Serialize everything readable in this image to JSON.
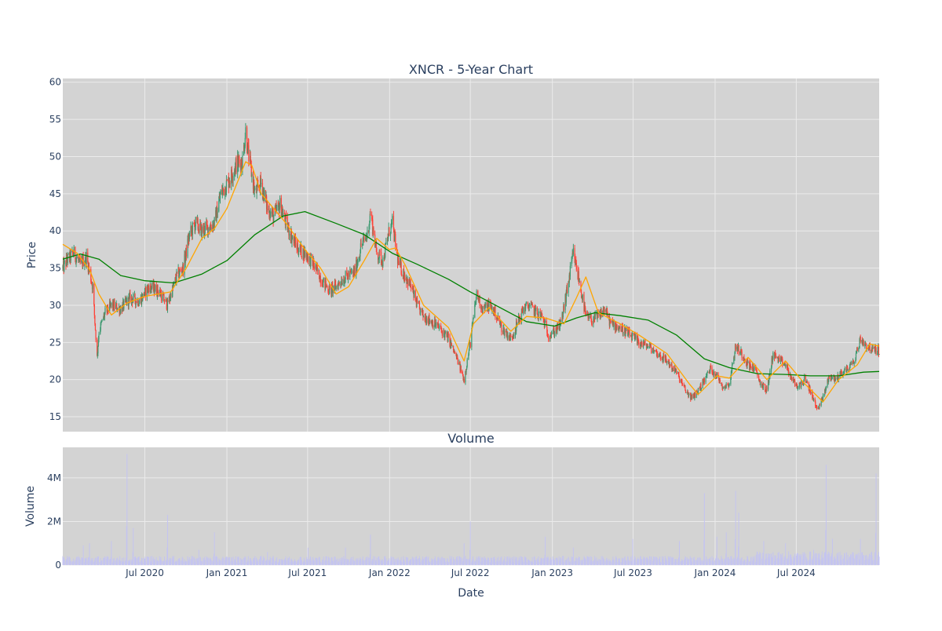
{
  "chart_data": [
    {
      "id": "price",
      "type": "candlestick",
      "title": "XNCR - 5-Year Chart",
      "xlabel": "",
      "ylabel": "Price",
      "x_range": [
        "2019-12-30",
        "2025-01-03"
      ],
      "ylim": [
        13,
        60.5
      ],
      "y_ticks": [
        15,
        20,
        25,
        30,
        35,
        40,
        45,
        50,
        55,
        60
      ],
      "x_ticks": [
        {
          "date": "2020-07-01",
          "label": "Jul 2020"
        },
        {
          "date": "2021-01-01",
          "label": "Jan 2021"
        },
        {
          "date": "2021-07-01",
          "label": "Jul 2021"
        },
        {
          "date": "2022-01-01",
          "label": "Jan 2022"
        },
        {
          "date": "2022-07-01",
          "label": "Jul 2022"
        },
        {
          "date": "2023-01-01",
          "label": "Jan 2023"
        },
        {
          "date": "2023-07-01",
          "label": "Jul 2023"
        },
        {
          "date": "2024-01-01",
          "label": "Jan 2024"
        },
        {
          "date": "2024-07-01",
          "label": "Jul 2024"
        }
      ],
      "grid": true,
      "legend": "none",
      "colors": {
        "background": "#d3d3d3",
        "increasing": "#3d9970",
        "decreasing": "#ff4136",
        "ma_short": "#ffa500",
        "ma_long": "#008000",
        "grid": "#ebebeb"
      },
      "close_path": [
        [
          "2019-12-30",
          35.0
        ],
        [
          "2020-01-10",
          36.2
        ],
        [
          "2020-01-24",
          37.0
        ],
        [
          "2020-02-07",
          35.5
        ],
        [
          "2020-02-21",
          36.5
        ],
        [
          "2020-03-06",
          32.5
        ],
        [
          "2020-03-16",
          23.0
        ],
        [
          "2020-03-20",
          26.5
        ],
        [
          "2020-04-03",
          29.0
        ],
        [
          "2020-04-17",
          30.0
        ],
        [
          "2020-05-08",
          29.5
        ],
        [
          "2020-05-29",
          31.0
        ],
        [
          "2020-06-19",
          30.5
        ],
        [
          "2020-07-10",
          32.5
        ],
        [
          "2020-07-31",
          32.0
        ],
        [
          "2020-08-21",
          30.0
        ],
        [
          "2020-09-11",
          34.0
        ],
        [
          "2020-09-25",
          35.0
        ],
        [
          "2020-10-09",
          39.5
        ],
        [
          "2020-10-23",
          41.0
        ],
        [
          "2020-11-06",
          40.0
        ],
        [
          "2020-11-20",
          40.5
        ],
        [
          "2020-12-04",
          41.0
        ],
        [
          "2020-12-18",
          45.0
        ],
        [
          "2021-01-08",
          47.0
        ],
        [
          "2021-01-22",
          49.0
        ],
        [
          "2021-02-05",
          49.5
        ],
        [
          "2021-02-12",
          53.5
        ],
        [
          "2021-02-19",
          50.0
        ],
        [
          "2021-03-05",
          45.0
        ],
        [
          "2021-03-19",
          46.5
        ],
        [
          "2021-04-02",
          43.0
        ],
        [
          "2021-04-16",
          42.0
        ],
        [
          "2021-04-30",
          43.5
        ],
        [
          "2021-05-14",
          41.0
        ],
        [
          "2021-05-28",
          39.0
        ],
        [
          "2021-06-11",
          37.5
        ],
        [
          "2021-06-25",
          37.0
        ],
        [
          "2021-07-09",
          36.0
        ],
        [
          "2021-07-23",
          34.5
        ],
        [
          "2021-08-06",
          33.0
        ],
        [
          "2021-08-20",
          32.0
        ],
        [
          "2021-09-03",
          32.5
        ],
        [
          "2021-09-17",
          33.5
        ],
        [
          "2021-10-01",
          34.0
        ],
        [
          "2021-10-15",
          34.5
        ],
        [
          "2021-10-29",
          38.0
        ],
        [
          "2021-11-12",
          39.5
        ],
        [
          "2021-11-19",
          42.5
        ],
        [
          "2021-12-03",
          37.0
        ],
        [
          "2021-12-17",
          36.0
        ],
        [
          "2021-12-31",
          40.0
        ],
        [
          "2022-01-07",
          41.0
        ],
        [
          "2022-01-21",
          35.5
        ],
        [
          "2022-02-04",
          34.0
        ],
        [
          "2022-02-18",
          32.5
        ],
        [
          "2022-03-04",
          30.0
        ],
        [
          "2022-03-18",
          28.5
        ],
        [
          "2022-04-01",
          28.0
        ],
        [
          "2022-04-22",
          27.0
        ],
        [
          "2022-05-13",
          25.5
        ],
        [
          "2022-06-03",
          22.5
        ],
        [
          "2022-06-17",
          20.0
        ],
        [
          "2022-07-01",
          25.0
        ],
        [
          "2022-07-15",
          31.5
        ],
        [
          "2022-07-29",
          29.5
        ],
        [
          "2022-08-12",
          30.0
        ],
        [
          "2022-08-26",
          29.0
        ],
        [
          "2022-09-09",
          27.0
        ],
        [
          "2022-09-30",
          25.5
        ],
        [
          "2022-10-14",
          27.5
        ],
        [
          "2022-10-28",
          29.5
        ],
        [
          "2022-11-11",
          30.0
        ],
        [
          "2022-11-25",
          29.0
        ],
        [
          "2022-12-09",
          28.5
        ],
        [
          "2022-12-23",
          26.0
        ],
        [
          "2023-01-06",
          26.5
        ],
        [
          "2023-01-20",
          27.5
        ],
        [
          "2023-02-03",
          32.0
        ],
        [
          "2023-02-17",
          37.0
        ],
        [
          "2023-03-03",
          33.0
        ],
        [
          "2023-03-17",
          28.5
        ],
        [
          "2023-03-31",
          28.0
        ],
        [
          "2023-04-14",
          28.5
        ],
        [
          "2023-04-28",
          29.5
        ],
        [
          "2023-05-12",
          27.5
        ],
        [
          "2023-06-02",
          27.0
        ],
        [
          "2023-06-23",
          26.0
        ],
        [
          "2023-07-14",
          25.0
        ],
        [
          "2023-08-04",
          24.5
        ],
        [
          "2023-08-25",
          23.5
        ],
        [
          "2023-09-15",
          22.5
        ],
        [
          "2023-10-06",
          21.0
        ],
        [
          "2023-10-27",
          18.5
        ],
        [
          "2023-11-10",
          17.5
        ],
        [
          "2023-11-24",
          18.5
        ],
        [
          "2023-12-08",
          20.0
        ],
        [
          "2023-12-22",
          21.5
        ],
        [
          "2024-01-05",
          20.5
        ],
        [
          "2024-01-19",
          19.0
        ],
        [
          "2024-02-02",
          19.5
        ],
        [
          "2024-02-16",
          24.5
        ],
        [
          "2024-03-01",
          23.5
        ],
        [
          "2024-03-15",
          22.0
        ],
        [
          "2024-03-29",
          21.5
        ],
        [
          "2024-04-12",
          19.5
        ],
        [
          "2024-04-26",
          18.5
        ],
        [
          "2024-05-10",
          23.5
        ],
        [
          "2024-05-24",
          22.5
        ],
        [
          "2024-06-07",
          22.0
        ],
        [
          "2024-06-21",
          20.0
        ],
        [
          "2024-07-05",
          19.0
        ],
        [
          "2024-07-19",
          20.0
        ],
        [
          "2024-08-02",
          18.5
        ],
        [
          "2024-08-16",
          16.0
        ],
        [
          "2024-08-30",
          17.5
        ],
        [
          "2024-09-13",
          20.5
        ],
        [
          "2024-09-27",
          20.0
        ],
        [
          "2024-10-11",
          21.0
        ],
        [
          "2024-10-25",
          21.5
        ],
        [
          "2024-11-08",
          22.5
        ],
        [
          "2024-11-22",
          25.5
        ],
        [
          "2024-12-06",
          24.5
        ],
        [
          "2024-12-20",
          24.0
        ],
        [
          "2025-01-03",
          24.0
        ]
      ],
      "ma_short": [
        [
          "2019-12-30",
          38.2
        ],
        [
          "2020-01-31",
          37.0
        ],
        [
          "2020-02-28",
          34.8
        ],
        [
          "2020-03-20",
          31.5
        ],
        [
          "2020-04-17",
          28.7
        ],
        [
          "2020-05-22",
          30.3
        ],
        [
          "2020-07-01",
          31.2
        ],
        [
          "2020-08-28",
          31.8
        ],
        [
          "2020-10-02",
          35.0
        ],
        [
          "2020-11-06",
          39.0
        ],
        [
          "2020-12-04",
          40.3
        ],
        [
          "2021-01-01",
          43.0
        ],
        [
          "2021-02-12",
          49.3
        ],
        [
          "2021-02-26",
          48.8
        ],
        [
          "2021-03-19",
          45.0
        ],
        [
          "2021-05-14",
          41.0
        ],
        [
          "2021-06-25",
          37.5
        ],
        [
          "2021-07-30",
          35.0
        ],
        [
          "2021-09-03",
          31.5
        ],
        [
          "2021-10-01",
          32.5
        ],
        [
          "2021-11-05",
          36.0
        ],
        [
          "2021-12-03",
          39.0
        ],
        [
          "2021-12-31",
          37.5
        ],
        [
          "2022-01-14",
          37.7
        ],
        [
          "2022-02-04",
          35.5
        ],
        [
          "2022-03-18",
          30.0
        ],
        [
          "2022-05-13",
          27.0
        ],
        [
          "2022-06-17",
          22.5
        ],
        [
          "2022-07-08",
          27.5
        ],
        [
          "2022-08-12",
          29.7
        ],
        [
          "2022-09-30",
          26.5
        ],
        [
          "2022-11-04",
          28.5
        ],
        [
          "2022-12-16",
          28.3
        ],
        [
          "2023-01-27",
          27.5
        ],
        [
          "2023-02-24",
          31.0
        ],
        [
          "2023-03-17",
          33.8
        ],
        [
          "2023-04-14",
          29.0
        ],
        [
          "2023-06-02",
          27.5
        ],
        [
          "2023-07-14",
          26.0
        ],
        [
          "2023-09-15",
          23.5
        ],
        [
          "2023-11-03",
          19.5
        ],
        [
          "2023-11-24",
          18.0
        ],
        [
          "2024-01-05",
          20.5
        ],
        [
          "2024-02-02",
          20.2
        ],
        [
          "2024-03-15",
          23.0
        ],
        [
          "2024-04-26",
          20.0
        ],
        [
          "2024-06-07",
          22.5
        ],
        [
          "2024-07-19",
          19.5
        ],
        [
          "2024-08-30",
          17.0
        ],
        [
          "2024-10-04",
          20.0
        ],
        [
          "2024-11-15",
          22.0
        ],
        [
          "2024-12-13",
          24.8
        ],
        [
          "2025-01-03",
          24.5
        ]
      ],
      "ma_long": [
        [
          "2019-12-30",
          36.2
        ],
        [
          "2020-02-07",
          36.9
        ],
        [
          "2020-03-20",
          36.2
        ],
        [
          "2020-05-08",
          34.0
        ],
        [
          "2020-07-01",
          33.3
        ],
        [
          "2020-09-04",
          33.0
        ],
        [
          "2020-11-06",
          34.2
        ],
        [
          "2021-01-01",
          36.0
        ],
        [
          "2021-03-05",
          39.5
        ],
        [
          "2021-05-07",
          42.0
        ],
        [
          "2021-06-25",
          42.6
        ],
        [
          "2021-09-03",
          41.0
        ],
        [
          "2021-11-05",
          39.5
        ],
        [
          "2022-01-07",
          37.0
        ],
        [
          "2022-03-04",
          35.5
        ],
        [
          "2022-05-13",
          33.5
        ],
        [
          "2022-07-01",
          31.8
        ],
        [
          "2022-09-02",
          29.8
        ],
        [
          "2022-11-04",
          27.8
        ],
        [
          "2023-01-06",
          27.2
        ],
        [
          "2023-02-24",
          28.3
        ],
        [
          "2023-04-07",
          29.0
        ],
        [
          "2023-06-02",
          28.6
        ],
        [
          "2023-08-04",
          28.0
        ],
        [
          "2023-10-06",
          26.0
        ],
        [
          "2023-12-08",
          22.8
        ],
        [
          "2024-02-02",
          21.6
        ],
        [
          "2024-04-05",
          20.8
        ],
        [
          "2024-06-07",
          20.7
        ],
        [
          "2024-08-02",
          20.5
        ],
        [
          "2024-10-04",
          20.5
        ],
        [
          "2024-11-29",
          21.0
        ],
        [
          "2025-01-03",
          21.1
        ]
      ]
    },
    {
      "id": "volume",
      "type": "bar",
      "title": "Volume",
      "xlabel": "Date",
      "ylabel": "Volume",
      "ylim": [
        0,
        5400000
      ],
      "y_ticks": [
        {
          "value": 0,
          "label": "0"
        },
        {
          "value": 2000000,
          "label": "2M"
        },
        {
          "value": 4000000,
          "label": "4M"
        }
      ],
      "color": "#c4c4f0",
      "baseline": 300000,
      "spikes": [
        [
          "2020-02-14",
          900000
        ],
        [
          "2020-02-28",
          1000000
        ],
        [
          "2020-04-17",
          1100000
        ],
        [
          "2020-05-22",
          5100000
        ],
        [
          "2020-06-05",
          1700000
        ],
        [
          "2020-08-21",
          2300000
        ],
        [
          "2020-10-30",
          700000
        ],
        [
          "2020-12-04",
          1500000
        ],
        [
          "2021-04-02",
          600000
        ],
        [
          "2021-07-02",
          800000
        ],
        [
          "2021-09-24",
          800000
        ],
        [
          "2021-11-19",
          1400000
        ],
        [
          "2022-06-17",
          1000000
        ],
        [
          "2022-07-01",
          2000000
        ],
        [
          "2022-12-16",
          1300000
        ],
        [
          "2023-02-17",
          800000
        ],
        [
          "2023-06-30",
          1200000
        ],
        [
          "2023-10-13",
          1100000
        ],
        [
          "2023-12-08",
          3300000
        ],
        [
          "2024-01-05",
          1300000
        ],
        [
          "2024-01-26",
          1500000
        ],
        [
          "2024-02-16",
          3400000
        ],
        [
          "2024-02-23",
          2400000
        ],
        [
          "2024-04-19",
          1100000
        ],
        [
          "2024-06-07",
          1000000
        ],
        [
          "2024-08-09",
          700000
        ],
        [
          "2024-09-06",
          4600000
        ],
        [
          "2024-09-20",
          1200000
        ],
        [
          "2024-11-22",
          1200000
        ],
        [
          "2024-12-27",
          4200000
        ]
      ]
    }
  ]
}
